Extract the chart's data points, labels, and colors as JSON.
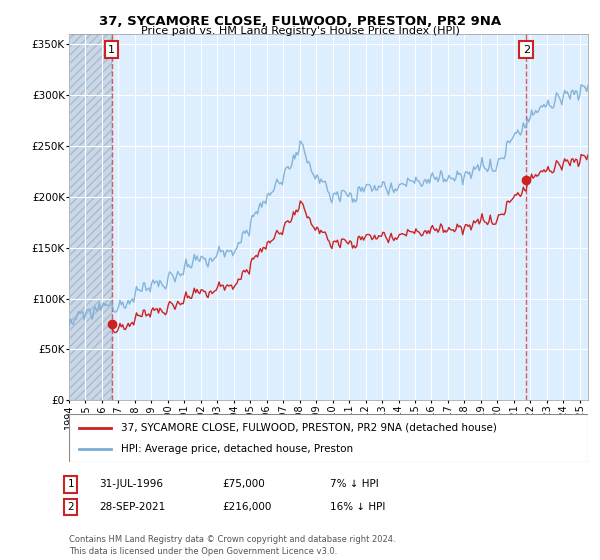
{
  "title": "37, SYCAMORE CLOSE, FULWOOD, PRESTON, PR2 9NA",
  "subtitle": "Price paid vs. HM Land Registry's House Price Index (HPI)",
  "legend_label1": "37, SYCAMORE CLOSE, FULWOOD, PRESTON, PR2 9NA (detached house)",
  "legend_label2": "HPI: Average price, detached house, Preston",
  "footer": "Contains HM Land Registry data © Crown copyright and database right 2024.\nThis data is licensed under the Open Government Licence v3.0.",
  "ylim": [
    0,
    360000
  ],
  "yticks": [
    0,
    50000,
    100000,
    150000,
    200000,
    250000,
    300000,
    350000
  ],
  "ytick_labels": [
    "£0",
    "£50K",
    "£100K",
    "£150K",
    "£200K",
    "£250K",
    "£300K",
    "£350K"
  ],
  "hpi_color": "#7aadd4",
  "price_color": "#cc2222",
  "point1_x": 1996.58,
  "point1_y": 75000,
  "point2_x": 2021.75,
  "point2_y": 216000,
  "background_color": "#ffffff",
  "plot_bg_color": "#ddeeff",
  "hatch_color": "#c8d8e8",
  "xlim_start": 1994,
  "xlim_end": 2025.5,
  "ann1_date": "31-JUL-1996",
  "ann1_price": "£75,000",
  "ann1_pct": "7% ↓ HPI",
  "ann2_date": "28-SEP-2021",
  "ann2_price": "£216,000",
  "ann2_pct": "16% ↓ HPI"
}
